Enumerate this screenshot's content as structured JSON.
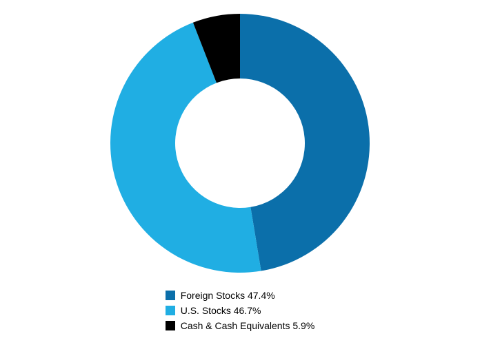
{
  "chart": {
    "type": "donut",
    "background_color": "#ffffff",
    "diameter": 376,
    "ring_outer_radius": 188,
    "ring_inner_radius": 94,
    "start_angle_deg": 0,
    "slices": [
      {
        "label": "Foreign Stocks",
        "value": 47.4,
        "color": "#0b6faa"
      },
      {
        "label": "U.S. Stocks",
        "value": 46.7,
        "color": "#20aee3"
      },
      {
        "label": "Cash & Cash Equivalents",
        "value": 5.9,
        "color": "#000000"
      }
    ],
    "legend": {
      "font_size": 14,
      "text_color": "#000000",
      "swatch_size": 14,
      "items": [
        {
          "text": "Foreign Stocks 47.4%",
          "color": "#0b6faa"
        },
        {
          "text": "U.S. Stocks 46.7%",
          "color": "#20aee3"
        },
        {
          "text": "Cash & Cash Equivalents 5.9%",
          "color": "#000000"
        }
      ]
    }
  }
}
